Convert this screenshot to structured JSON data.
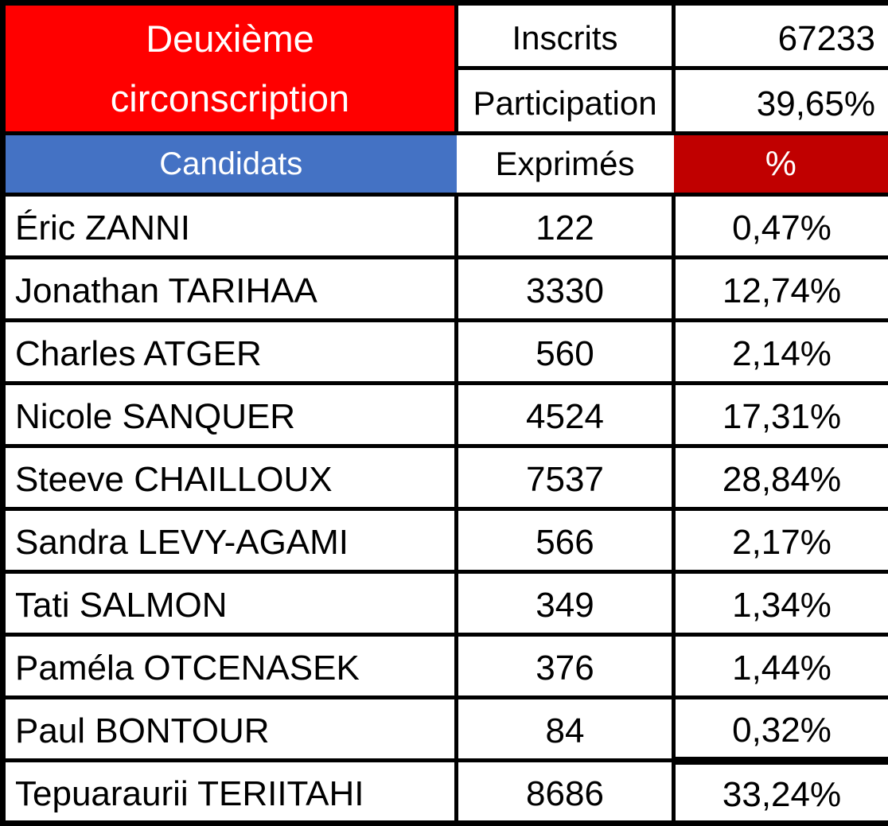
{
  "table": {
    "title": "Deuxième circonscription",
    "stats": [
      {
        "label": "Inscrits",
        "value": "67233"
      },
      {
        "label": "Participation",
        "value": "39,65%"
      }
    ],
    "header": {
      "candidates": "Candidats",
      "votes": "Exprimés",
      "percent": "%"
    },
    "rows": [
      {
        "name": "Éric ZANNI",
        "votes": "122",
        "percent": "0,47%"
      },
      {
        "name": "Jonathan TARIHAA",
        "votes": "3330",
        "percent": "12,74%"
      },
      {
        "name": "Charles ATGER",
        "votes": "560",
        "percent": "2,14%"
      },
      {
        "name": "Nicole SANQUER",
        "votes": "4524",
        "percent": "17,31%"
      },
      {
        "name": "Steeve CHAILLOUX",
        "votes": "7537",
        "percent": "28,84%"
      },
      {
        "name": "Sandra LEVY-AGAMI",
        "votes": "566",
        "percent": "2,17%"
      },
      {
        "name": "Tati SALMON",
        "votes": "349",
        "percent": "1,34%"
      },
      {
        "name": "Paméla OTCENASEK",
        "votes": "376",
        "percent": "1,44%"
      },
      {
        "name": "Paul BONTOUR",
        "votes": "84",
        "percent": "0,32%"
      },
      {
        "name": "Tepuaraurii TERIITAHI",
        "votes": "8686",
        "percent": "33,24%"
      }
    ],
    "colors": {
      "title_bg": "#FF0000",
      "candidates_header_bg": "#4472C4",
      "percent_header_bg": "#C00000",
      "border": "#000000",
      "header_text": "#FFFFFF",
      "body_text": "#000000"
    }
  },
  "chart_data": {
    "type": "table",
    "title": "Deuxième circonscription",
    "summary": {
      "inscrits": 67233,
      "participation_pct": "39,65%"
    },
    "columns": [
      "Candidats",
      "Exprimés",
      "%"
    ],
    "rows": [
      [
        "Éric ZANNI",
        122,
        "0,47%"
      ],
      [
        "Jonathan TARIHAA",
        3330,
        "12,74%"
      ],
      [
        "Charles ATGER",
        560,
        "2,14%"
      ],
      [
        "Nicole SANQUER",
        4524,
        "17,31%"
      ],
      [
        "Steeve CHAILLOUX",
        7537,
        "28,84%"
      ],
      [
        "Sandra LEVY-AGAMI",
        566,
        "2,17%"
      ],
      [
        "Tati SALMON",
        349,
        "1,34%"
      ],
      [
        "Paméla OTCENASEK",
        376,
        "1,44%"
      ],
      [
        "Paul BONTOUR",
        84,
        "0,32%"
      ],
      [
        "Tepuaraurii TERIITAHI",
        8686,
        "33,24%"
      ]
    ]
  }
}
